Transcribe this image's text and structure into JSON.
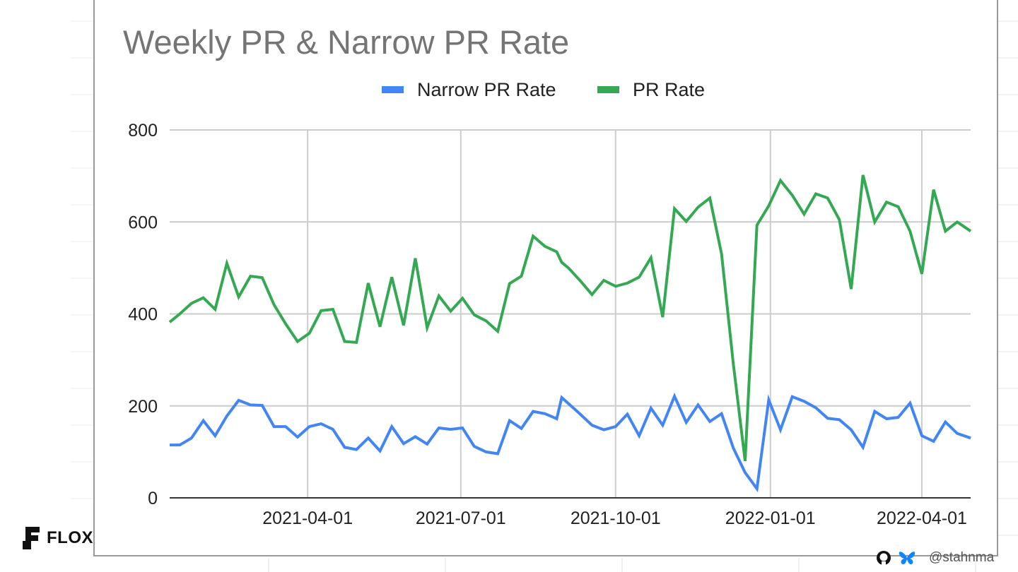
{
  "brand": {
    "name": "FLOX"
  },
  "footer": {
    "handle": "@stahnma",
    "icons": [
      "github-icon",
      "butterfly-icon"
    ]
  },
  "colors": {
    "narrow": "#4285F4",
    "pr": "#34A853",
    "grid": "#cccccc",
    "title": "#757575"
  },
  "chart_data": {
    "type": "line",
    "title": "Weekly PR & Narrow PR Rate",
    "xlabel": "",
    "ylabel": "",
    "ylim": [
      0,
      800
    ],
    "yticks": [
      0,
      200,
      400,
      600,
      800
    ],
    "xticks": [
      "2021-04-01",
      "2021-07-01",
      "2021-10-01",
      "2022-01-01",
      "2022-04-01"
    ],
    "xrange": [
      "2021-01-09",
      "2022-04-30"
    ],
    "grid": true,
    "legend": "top-center",
    "series": [
      {
        "name": "Narrow PR Rate",
        "color": "#4285F4",
        "points": [
          [
            "2021-01-09",
            115
          ],
          [
            "2021-01-15",
            115
          ],
          [
            "2021-01-22",
            130
          ],
          [
            "2021-01-29",
            168
          ],
          [
            "2021-02-05",
            135
          ],
          [
            "2021-02-12",
            178
          ],
          [
            "2021-02-19",
            212
          ],
          [
            "2021-02-26",
            202
          ],
          [
            "2021-03-05",
            201
          ],
          [
            "2021-03-12",
            155
          ],
          [
            "2021-03-19",
            155
          ],
          [
            "2021-03-26",
            132
          ],
          [
            "2021-04-02",
            155
          ],
          [
            "2021-04-09",
            161
          ],
          [
            "2021-04-16",
            149
          ],
          [
            "2021-04-23",
            110
          ],
          [
            "2021-04-30",
            105
          ],
          [
            "2021-05-07",
            130
          ],
          [
            "2021-05-14",
            102
          ],
          [
            "2021-05-21",
            155
          ],
          [
            "2021-05-28",
            118
          ],
          [
            "2021-06-04",
            133
          ],
          [
            "2021-06-11",
            117
          ],
          [
            "2021-06-18",
            152
          ],
          [
            "2021-06-25",
            149
          ],
          [
            "2021-07-02",
            152
          ],
          [
            "2021-07-09",
            112
          ],
          [
            "2021-07-16",
            100
          ],
          [
            "2021-07-23",
            96
          ],
          [
            "2021-07-30",
            168
          ],
          [
            "2021-08-06",
            151
          ],
          [
            "2021-08-13",
            188
          ],
          [
            "2021-08-20",
            183
          ],
          [
            "2021-08-27",
            172
          ],
          [
            "2021-08-30",
            218
          ],
          [
            "2021-09-03",
            205
          ],
          [
            "2021-09-10",
            182
          ],
          [
            "2021-09-17",
            158
          ],
          [
            "2021-09-24",
            148
          ],
          [
            "2021-10-01",
            155
          ],
          [
            "2021-10-08",
            182
          ],
          [
            "2021-10-15",
            135
          ],
          [
            "2021-10-22",
            195
          ],
          [
            "2021-10-29",
            158
          ],
          [
            "2021-11-05",
            221
          ],
          [
            "2021-11-12",
            164
          ],
          [
            "2021-11-19",
            202
          ],
          [
            "2021-11-26",
            166
          ],
          [
            "2021-12-03",
            183
          ],
          [
            "2021-12-10",
            108
          ],
          [
            "2021-12-17",
            55
          ],
          [
            "2021-12-24",
            20
          ],
          [
            "2021-12-31",
            213
          ],
          [
            "2022-01-07",
            148
          ],
          [
            "2022-01-14",
            220
          ],
          [
            "2022-01-21",
            210
          ],
          [
            "2022-01-28",
            196
          ],
          [
            "2022-02-04",
            173
          ],
          [
            "2022-02-11",
            170
          ],
          [
            "2022-02-18",
            148
          ],
          [
            "2022-02-25",
            110
          ],
          [
            "2022-03-04",
            188
          ],
          [
            "2022-03-11",
            172
          ],
          [
            "2022-03-18",
            175
          ],
          [
            "2022-03-25",
            206
          ],
          [
            "2022-04-01",
            135
          ],
          [
            "2022-04-08",
            123
          ],
          [
            "2022-04-15",
            165
          ],
          [
            "2022-04-22",
            140
          ],
          [
            "2022-04-30",
            130
          ]
        ]
      },
      {
        "name": "PR Rate",
        "color": "#34A853",
        "points": [
          [
            "2021-01-09",
            382
          ],
          [
            "2021-01-15",
            400
          ],
          [
            "2021-01-22",
            423
          ],
          [
            "2021-01-29",
            435
          ],
          [
            "2021-02-05",
            410
          ],
          [
            "2021-02-12",
            510
          ],
          [
            "2021-02-19",
            437
          ],
          [
            "2021-02-26",
            482
          ],
          [
            "2021-03-05",
            479
          ],
          [
            "2021-03-12",
            420
          ],
          [
            "2021-03-19",
            378
          ],
          [
            "2021-03-26",
            340
          ],
          [
            "2021-04-02",
            358
          ],
          [
            "2021-04-09",
            407
          ],
          [
            "2021-04-16",
            410
          ],
          [
            "2021-04-23",
            340
          ],
          [
            "2021-04-30",
            338
          ],
          [
            "2021-05-07",
            467
          ],
          [
            "2021-05-14",
            372
          ],
          [
            "2021-05-21",
            480
          ],
          [
            "2021-05-28",
            375
          ],
          [
            "2021-06-04",
            521
          ],
          [
            "2021-06-11",
            370
          ],
          [
            "2021-06-18",
            439
          ],
          [
            "2021-06-25",
            406
          ],
          [
            "2021-07-02",
            434
          ],
          [
            "2021-07-09",
            398
          ],
          [
            "2021-07-16",
            385
          ],
          [
            "2021-07-23",
            362
          ],
          [
            "2021-07-30",
            466
          ],
          [
            "2021-08-06",
            482
          ],
          [
            "2021-08-13",
            569
          ],
          [
            "2021-08-20",
            547
          ],
          [
            "2021-08-27",
            535
          ],
          [
            "2021-08-30",
            512
          ],
          [
            "2021-09-03",
            500
          ],
          [
            "2021-09-10",
            472
          ],
          [
            "2021-09-17",
            442
          ],
          [
            "2021-09-24",
            473
          ],
          [
            "2021-10-01",
            460
          ],
          [
            "2021-10-08",
            467
          ],
          [
            "2021-10-15",
            480
          ],
          [
            "2021-10-22",
            522
          ],
          [
            "2021-10-29",
            393
          ],
          [
            "2021-11-05",
            629
          ],
          [
            "2021-11-12",
            601
          ],
          [
            "2021-11-19",
            632
          ],
          [
            "2021-11-26",
            652
          ],
          [
            "2021-12-03",
            530
          ],
          [
            "2021-12-10",
            290
          ],
          [
            "2021-12-17",
            80
          ],
          [
            "2021-12-24",
            593
          ],
          [
            "2021-12-31",
            635
          ],
          [
            "2022-01-07",
            690
          ],
          [
            "2022-01-14",
            658
          ],
          [
            "2022-01-21",
            617
          ],
          [
            "2022-01-28",
            661
          ],
          [
            "2022-02-04",
            652
          ],
          [
            "2022-02-11",
            605
          ],
          [
            "2022-02-18",
            454
          ],
          [
            "2022-02-25",
            702
          ],
          [
            "2022-03-04",
            600
          ],
          [
            "2022-03-11",
            643
          ],
          [
            "2022-03-18",
            633
          ],
          [
            "2022-03-25",
            580
          ],
          [
            "2022-04-01",
            487
          ],
          [
            "2022-04-08",
            670
          ],
          [
            "2022-04-15",
            580
          ],
          [
            "2022-04-22",
            600
          ],
          [
            "2022-04-30",
            580
          ]
        ]
      }
    ]
  }
}
